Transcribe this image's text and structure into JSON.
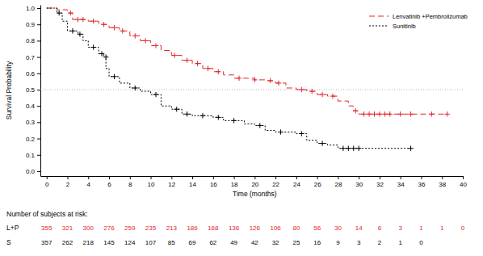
{
  "chart_data": {
    "type": "step",
    "y_label": "Survival Probability",
    "x_label": "Time (months)",
    "xlim": [
      -0.6,
      40
    ],
    "ylim": [
      -0.03,
      1.02
    ],
    "xticks": [
      0,
      2,
      4,
      6,
      8,
      10,
      12,
      14,
      16,
      18,
      20,
      22,
      24,
      26,
      28,
      30,
      32,
      34,
      36,
      38,
      40
    ],
    "yticks": [
      {
        "value": 0,
        "label": "0.0"
      },
      0.1,
      0.2,
      0.3,
      0.4,
      0.5,
      0.6,
      0.7,
      0.8,
      0.9,
      {
        "value": 1,
        "label": "1.0"
      }
    ],
    "grid": false,
    "legend": "top-right",
    "reference_line": 0.5,
    "series": [
      {
        "name": "Lenvatinib +Pembrolizumab",
        "color": "#e3262b",
        "line_style": "dashed",
        "marker": "plus",
        "x": [
          0,
          1,
          2,
          2.5,
          4,
          5,
          6,
          7,
          8,
          9,
          10,
          11,
          12,
          13,
          14,
          15,
          16,
          17,
          18,
          20,
          21,
          22,
          23,
          24,
          25,
          26,
          27,
          28,
          29,
          29.5,
          30,
          38.5
        ],
        "values": [
          1.0,
          0.99,
          0.97,
          0.93,
          0.92,
          0.9,
          0.88,
          0.86,
          0.83,
          0.8,
          0.77,
          0.74,
          0.71,
          0.68,
          0.66,
          0.63,
          0.61,
          0.59,
          0.57,
          0.56,
          0.555,
          0.54,
          0.51,
          0.5,
          0.49,
          0.47,
          0.46,
          0.43,
          0.4,
          0.37,
          0.35,
          0.35
        ],
        "censored_x": [
          2.3,
          3,
          3.5,
          4.5,
          5.5,
          6.5,
          7.3,
          8.5,
          9.5,
          10.5,
          12.3,
          13.5,
          14.5,
          15.5,
          16.5,
          18.5,
          20,
          21.5,
          22.3,
          24.5,
          25.5,
          26.5,
          27.5,
          29.7,
          30.5,
          31,
          31.5,
          32,
          32.5,
          33,
          34,
          35,
          37,
          38.5
        ],
        "censored_values": [
          0.97,
          0.93,
          0.93,
          0.92,
          0.9,
          0.88,
          0.86,
          0.83,
          0.8,
          0.77,
          0.71,
          0.68,
          0.66,
          0.63,
          0.61,
          0.57,
          0.56,
          0.555,
          0.54,
          0.5,
          0.49,
          0.47,
          0.46,
          0.37,
          0.35,
          0.35,
          0.35,
          0.35,
          0.35,
          0.35,
          0.35,
          0.35,
          0.35,
          0.35
        ]
      },
      {
        "name": "Sunitinib",
        "color": "#000000",
        "line_style": "dotted",
        "marker": "plus",
        "x": [
          0,
          1,
          1.5,
          2,
          3,
          3.5,
          4,
          5,
          5.5,
          5.7,
          6,
          7,
          8,
          9,
          10,
          11,
          12,
          13,
          14,
          16,
          17,
          19,
          20,
          21,
          22,
          24,
          25,
          26,
          27,
          28,
          35
        ],
        "values": [
          1.0,
          0.97,
          0.92,
          0.86,
          0.84,
          0.8,
          0.76,
          0.72,
          0.7,
          0.63,
          0.58,
          0.54,
          0.51,
          0.49,
          0.47,
          0.4,
          0.38,
          0.35,
          0.34,
          0.33,
          0.31,
          0.29,
          0.28,
          0.25,
          0.24,
          0.23,
          0.19,
          0.17,
          0.16,
          0.14,
          0.14
        ],
        "censored_x": [
          1.2,
          2.5,
          3.2,
          4.5,
          5.3,
          5.7,
          6.5,
          8.5,
          10.5,
          12.5,
          13.5,
          15,
          16.5,
          18,
          20.5,
          22.5,
          24.5,
          26.5,
          28.5,
          29,
          29.5,
          30,
          35
        ],
        "censored_values": [
          0.97,
          0.86,
          0.84,
          0.76,
          0.72,
          0.7,
          0.58,
          0.51,
          0.47,
          0.38,
          0.35,
          0.34,
          0.33,
          0.31,
          0.28,
          0.24,
          0.23,
          0.17,
          0.14,
          0.14,
          0.14,
          0.14,
          0.14
        ]
      }
    ],
    "risk_table": {
      "title": "Number of subjects at risk:",
      "times": [
        0,
        2,
        4,
        6,
        8,
        10,
        12,
        14,
        16,
        18,
        20,
        22,
        24,
        26,
        28,
        30,
        32,
        34,
        36,
        38,
        40
      ],
      "rows": [
        {
          "label": "L+P",
          "color": "#e3262b",
          "values": [
            355,
            321,
            300,
            276,
            259,
            235,
            213,
            186,
            168,
            136,
            126,
            106,
            80,
            56,
            30,
            14,
            6,
            3,
            1,
            1,
            0
          ]
        },
        {
          "label": "S",
          "color": "#000000",
          "values": [
            357,
            262,
            218,
            145,
            124,
            107,
            85,
            69,
            62,
            49,
            42,
            32,
            25,
            16,
            9,
            3,
            2,
            1,
            0,
            null,
            null
          ]
        }
      ]
    }
  }
}
